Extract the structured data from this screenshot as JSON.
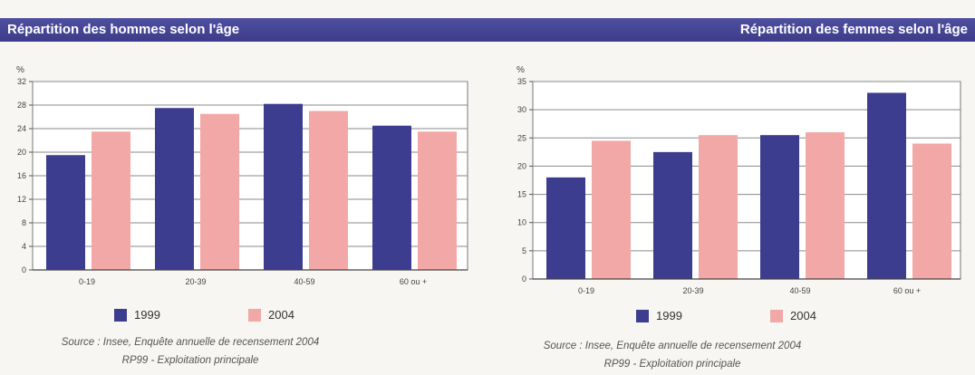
{
  "banner": {
    "left_title": "Répartition des hommes selon l'âge",
    "right_title": "Répartition des femmes selon l'âge"
  },
  "colors": {
    "banner": "#3c3c8a",
    "series_1999": "#3c3d8e",
    "series_2004": "#f2a8a6",
    "text": "#333333"
  },
  "chart_data": [
    {
      "type": "bar",
      "ylabel": "%",
      "ylim": [
        0,
        32
      ],
      "yticks": [
        0,
        4,
        8,
        12,
        16,
        20,
        24,
        28,
        32
      ],
      "ytick_labels": [
        "0",
        "4",
        "8",
        "12",
        "16",
        "20",
        "24",
        "28",
        "32"
      ],
      "categories": [
        "0-19",
        "20-39",
        "40-59",
        "60 ou +"
      ],
      "series": [
        {
          "name": "1999",
          "color": "#3c3d8e",
          "values": [
            19.5,
            27.5,
            28.2,
            24.5
          ]
        },
        {
          "name": "2004",
          "color": "#f2a8a6",
          "values": [
            23.5,
            26.5,
            27,
            23.5
          ]
        }
      ],
      "grid": true,
      "legend_position": "bottom",
      "source_lines": [
        "Source : Insee, Enquête annuelle de recensement 2004",
        "RP99 - Exploitation principale"
      ]
    },
    {
      "type": "bar",
      "ylabel": "%",
      "ylim": [
        0,
        35
      ],
      "yticks": [
        0,
        5,
        10,
        15,
        20,
        25,
        30,
        35
      ],
      "ytick_labels": [
        "0",
        "5",
        "10",
        "15",
        "20",
        "25",
        "30",
        "35"
      ],
      "categories": [
        "0-19",
        "20-39",
        "40-59",
        "60 ou +"
      ],
      "series": [
        {
          "name": "1999",
          "color": "#3c3d8e",
          "values": [
            18,
            22.5,
            25.5,
            33
          ]
        },
        {
          "name": "2004",
          "color": "#f2a8a6",
          "values": [
            24.5,
            25.5,
            26,
            24
          ]
        }
      ],
      "grid": true,
      "legend_position": "bottom",
      "source_lines": [
        "Source : Insee, Enquête annuelle de recensement 2004",
        "RP99 - Exploitation principale"
      ]
    }
  ]
}
